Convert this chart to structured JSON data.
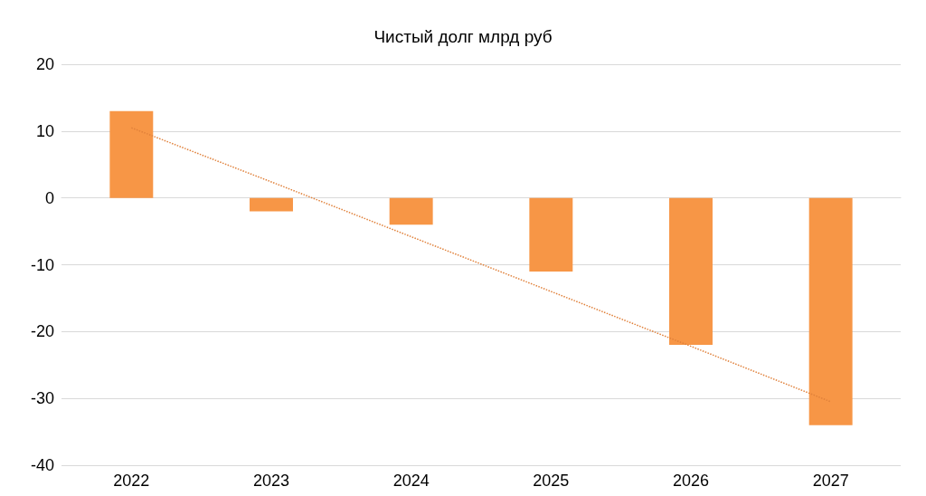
{
  "chart_data": {
    "type": "bar",
    "title": "Чистый долг млрд руб",
    "categories": [
      "2022",
      "2023",
      "2024",
      "2025",
      "2026",
      "2027"
    ],
    "series": [
      {
        "color": "#f79646",
        "values": [
          13,
          -2,
          -4,
          -11,
          -22,
          -34
        ]
      },
      {
        "type": "line",
        "color": "#e0803a",
        "line_style": "dotted",
        "marker": "none",
        "values": [
          10.5,
          2.4,
          -5.8,
          -14,
          -22.2,
          -30.5
        ]
      }
    ],
    "ylim": [
      -40,
      20
    ],
    "yticks": [
      -40,
      -30,
      -20,
      -10,
      0,
      10,
      20
    ],
    "grid": "y"
  }
}
